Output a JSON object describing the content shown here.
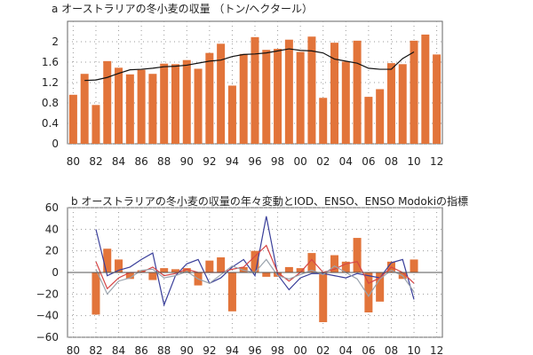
{
  "chart_data": [
    {
      "panel": "a",
      "type": "bar",
      "title": "a オーストラリアの冬小麦の収量 （トン/ヘクタール）",
      "xlabel": "",
      "ylabel": "",
      "x": [
        1980,
        1981,
        1982,
        1983,
        1984,
        1985,
        1986,
        1987,
        1988,
        1989,
        1990,
        1991,
        1992,
        1993,
        1994,
        1995,
        1996,
        1997,
        1998,
        1999,
        2000,
        2001,
        2002,
        2003,
        2004,
        2005,
        2006,
        2007,
        2008,
        2009,
        2010,
        2011,
        2012
      ],
      "tick_labels": [
        "80",
        "82",
        "84",
        "86",
        "88",
        "90",
        "92",
        "94",
        "96",
        "98",
        "00",
        "02",
        "04",
        "06",
        "08",
        "10",
        "12"
      ],
      "y_ticks": [
        "0",
        "0.4",
        "0.8",
        "1.2",
        "1.6",
        "2"
      ],
      "ylim": [
        0,
        2.4
      ],
      "grid": "dotted",
      "bar_color": "#e2743a",
      "line_color": "#111111",
      "series": [
        {
          "kind": "bar",
          "values": [
            0.96,
            1.37,
            0.76,
            1.62,
            1.49,
            1.36,
            1.45,
            1.37,
            1.57,
            1.56,
            1.64,
            1.47,
            1.78,
            1.96,
            1.14,
            1.76,
            2.09,
            1.84,
            1.86,
            2.04,
            1.8,
            2.1,
            0.9,
            1.98,
            1.61,
            2.02,
            0.92,
            1.07,
            1.58,
            1.56,
            2.02,
            2.14,
            1.75
          ]
        },
        {
          "kind": "line",
          "x": [
            1981,
            1982,
            1983,
            1984,
            1985,
            1986,
            1987,
            1988,
            1989,
            1990,
            1991,
            1992,
            1993,
            1994,
            1995,
            1996,
            1997,
            1998,
            1999,
            2000,
            2001,
            2002,
            2003,
            2004,
            2005,
            2006,
            2007,
            2008,
            2009,
            2010
          ],
          "values": [
            1.24,
            1.25,
            1.3,
            1.38,
            1.45,
            1.46,
            1.48,
            1.51,
            1.52,
            1.54,
            1.58,
            1.62,
            1.64,
            1.71,
            1.75,
            1.76,
            1.78,
            1.82,
            1.86,
            1.83,
            1.82,
            1.78,
            1.66,
            1.62,
            1.58,
            1.48,
            1.46,
            1.46,
            1.67,
            1.8
          ]
        }
      ]
    },
    {
      "panel": "b",
      "type": "bar",
      "title": "b オーストラリアの冬小麦の収量の年々変動とIOD、ENSO、ENSO Modokiの指標",
      "xlabel": "",
      "ylabel": "",
      "x": [
        1980,
        1981,
        1982,
        1983,
        1984,
        1985,
        1986,
        1987,
        1988,
        1989,
        1990,
        1991,
        1992,
        1993,
        1994,
        1995,
        1996,
        1997,
        1998,
        1999,
        2000,
        2001,
        2002,
        2003,
        2004,
        2005,
        2006,
        2007,
        2008,
        2009,
        2010,
        2011,
        2012
      ],
      "tick_labels": [
        "80",
        "82",
        "84",
        "86",
        "88",
        "90",
        "92",
        "94",
        "96",
        "98",
        "00",
        "02",
        "04",
        "06",
        "08",
        "10",
        "12"
      ],
      "y_ticks": [
        "60",
        "40",
        "20",
        "0",
        "−20",
        "−40",
        "−60"
      ],
      "ylim": [
        -60,
        60
      ],
      "grid": "dotted",
      "bar_color": "#e2743a",
      "series": [
        {
          "kind": "bar",
          "x": [
            1982,
            1983,
            1984,
            1985,
            1986,
            1987,
            1988,
            1989,
            1990,
            1991,
            1992,
            1993,
            1994,
            1995,
            1996,
            1997,
            1998,
            1999,
            2000,
            2001,
            2002,
            2003,
            2004,
            2005,
            2006,
            2007,
            2008,
            2009,
            2010
          ],
          "values": [
            -39,
            22,
            12,
            -6,
            2,
            -7,
            4,
            3,
            4,
            -12,
            11,
            14,
            -36,
            5,
            20,
            -4,
            -4,
            5,
            4,
            18,
            -46,
            16,
            10,
            32,
            -37,
            -27,
            10,
            -6,
            12
          ]
        },
        {
          "kind": "line",
          "color": "#3a3f9a",
          "x": [
            1982,
            1983,
            1984,
            1985,
            1986,
            1987,
            1988,
            1989,
            1990,
            1991,
            1992,
            1993,
            1994,
            1995,
            1996,
            1997,
            1998,
            1999,
            2000,
            2001,
            2002,
            2003,
            2004,
            2005,
            2006,
            2007,
            2008,
            2009,
            2010
          ],
          "values": [
            40,
            -3,
            2,
            5,
            12,
            18,
            -30,
            -3,
            8,
            12,
            -10,
            -5,
            5,
            12,
            -3,
            52,
            -2,
            -16,
            -5,
            -1,
            -1,
            -3,
            -5,
            -1,
            -3,
            -5,
            9,
            12,
            -25
          ]
        },
        {
          "kind": "line",
          "color": "#d64545",
          "x": [
            1982,
            1983,
            1984,
            1985,
            1986,
            1987,
            1988,
            1989,
            1990,
            1991,
            1992,
            1993,
            1994,
            1995,
            1996,
            1997,
            1998,
            1999,
            2000,
            2001,
            2002,
            2003,
            2004,
            2005,
            2006,
            2007,
            2008,
            2009,
            2010
          ],
          "values": [
            10,
            -15,
            -5,
            0,
            0,
            5,
            -3,
            -1,
            3,
            0,
            0,
            0,
            3,
            5,
            15,
            25,
            0,
            -8,
            0,
            12,
            0,
            3,
            8,
            10,
            -10,
            -5,
            5,
            0,
            -10
          ]
        },
        {
          "kind": "line",
          "color": "#9aa3ad",
          "x": [
            1982,
            1983,
            1984,
            1985,
            1986,
            1987,
            1988,
            1989,
            1990,
            1991,
            1992,
            1993,
            1994,
            1995,
            1996,
            1997,
            1998,
            1999,
            2000,
            2001,
            2002,
            2003,
            2004,
            2005,
            2006,
            2007,
            2008,
            2009,
            2010
          ],
          "values": [
            3,
            -20,
            -8,
            -5,
            2,
            3,
            -5,
            -3,
            1,
            -6,
            -10,
            -2,
            6,
            2,
            0,
            12,
            -3,
            -6,
            -2,
            2,
            -2,
            6,
            0,
            -6,
            -22,
            -6,
            2,
            -3,
            -18
          ]
        }
      ]
    }
  ]
}
